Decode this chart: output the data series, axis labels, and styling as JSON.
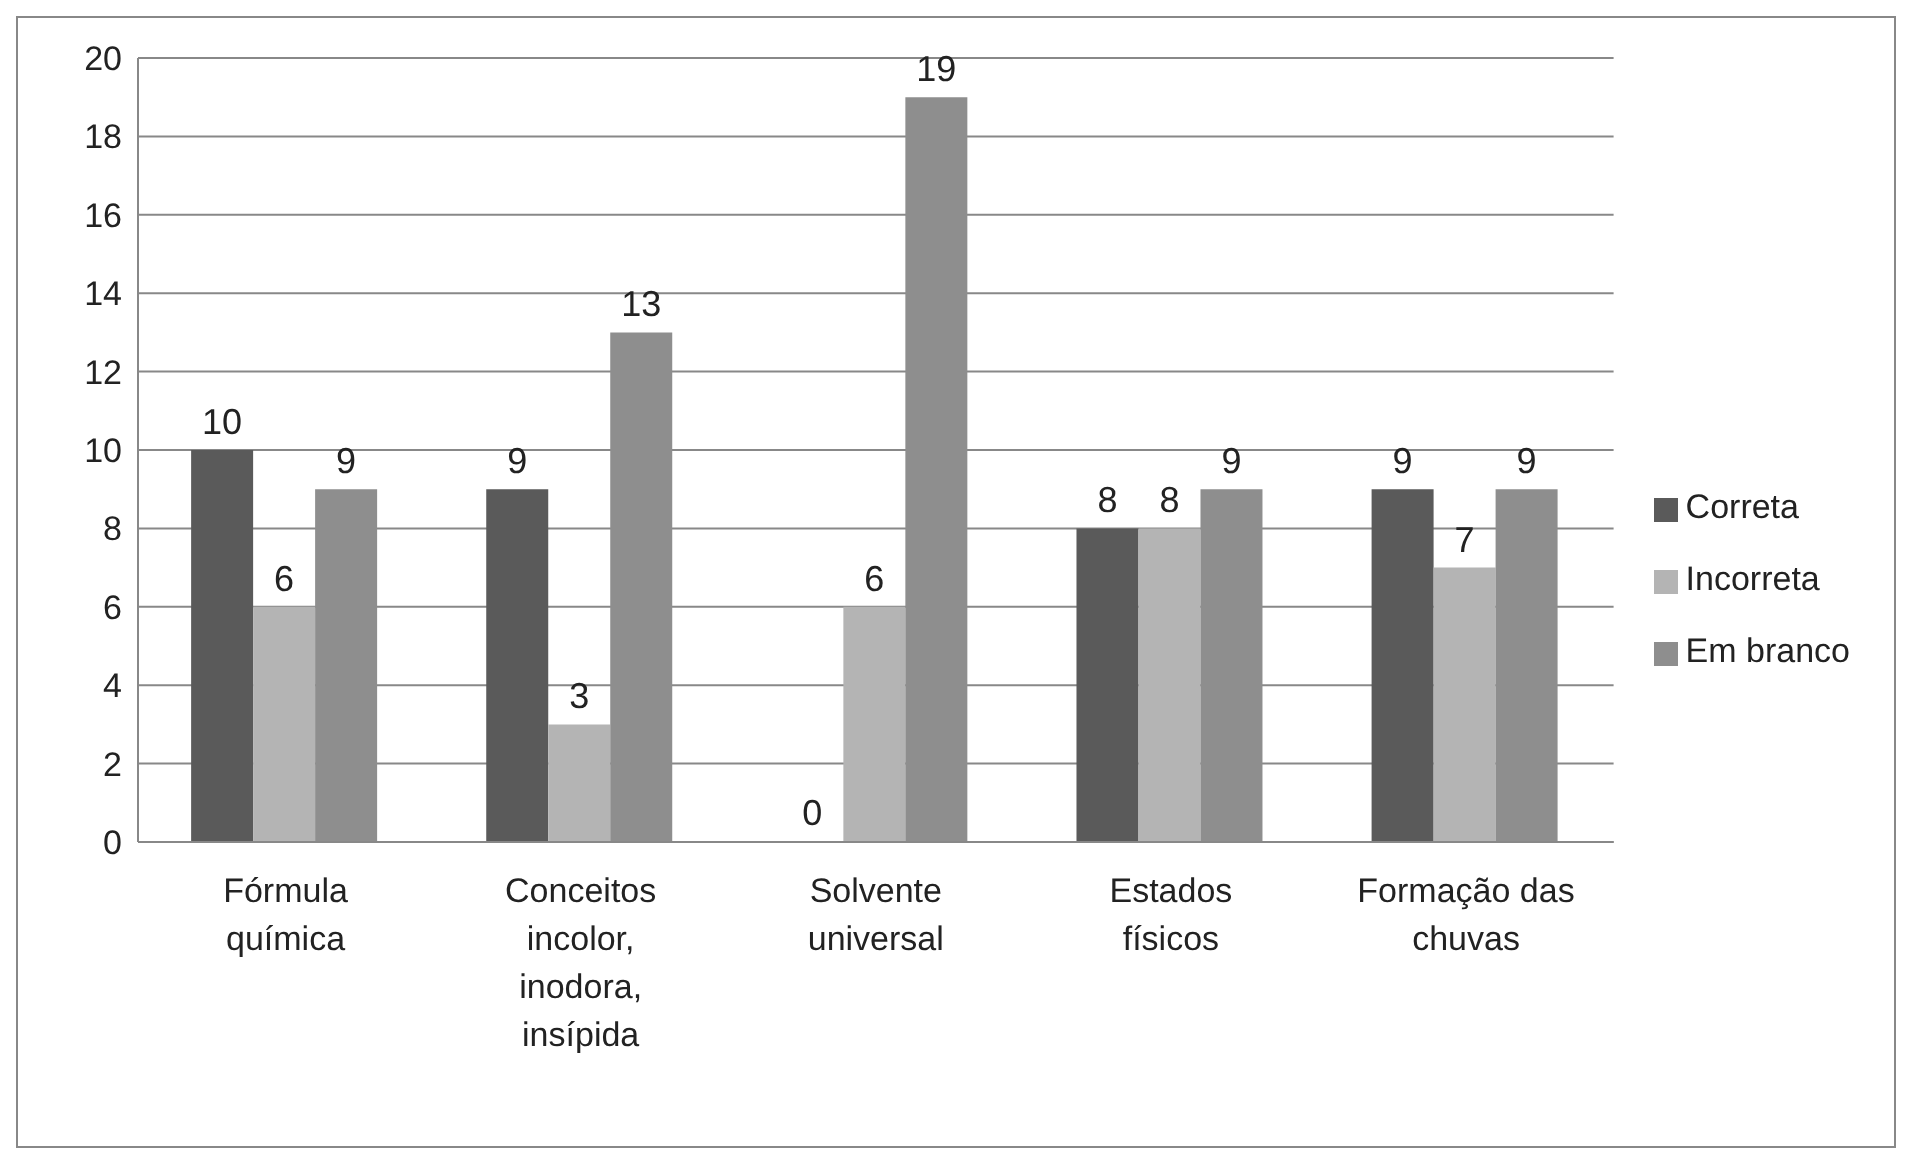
{
  "chart_data": {
    "type": "bar",
    "categories": [
      "Fórmula química",
      "Conceitos incolor, inodora, insípida",
      "Solvente universal",
      "Estados físicos",
      "Formação das chuvas"
    ],
    "series": [
      {
        "name": "Correta",
        "color": "#5a5a5a",
        "values": [
          10,
          9,
          0,
          8,
          9
        ]
      },
      {
        "name": "Incorreta",
        "color": "#b4b4b4",
        "values": [
          6,
          3,
          6,
          8,
          7
        ]
      },
      {
        "name": "Em branco",
        "color": "#8e8e8e",
        "values": [
          9,
          13,
          19,
          9,
          9
        ]
      }
    ],
    "ylim": [
      0,
      20
    ],
    "yticks": [
      0,
      2,
      4,
      6,
      8,
      10,
      12,
      14,
      16,
      18,
      20
    ],
    "grid": "y",
    "legend": "right",
    "data_labels": true
  }
}
